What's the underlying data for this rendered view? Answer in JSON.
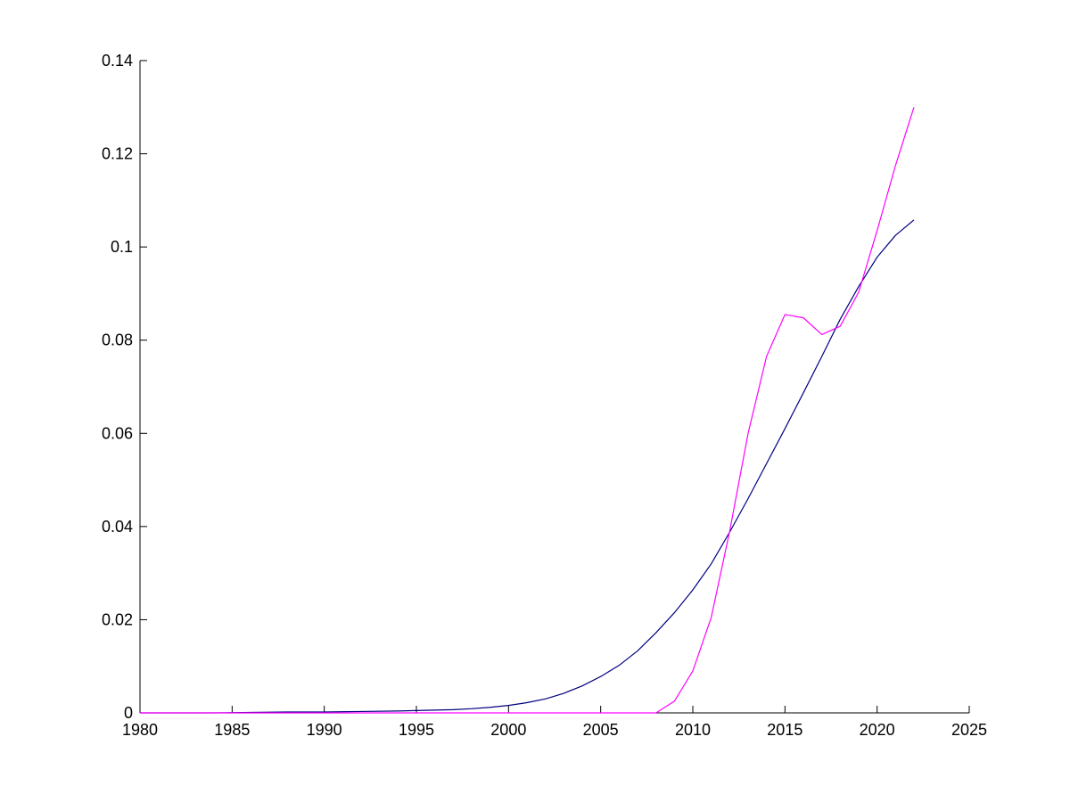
{
  "chart_data": {
    "type": "line",
    "title": "",
    "xlabel": "",
    "ylabel": "",
    "xlim": [
      1980,
      2025
    ],
    "ylim": [
      0,
      0.14
    ],
    "x_ticks": [
      1980,
      1985,
      1990,
      1995,
      2000,
      2005,
      2010,
      2015,
      2020,
      2025
    ],
    "x_tick_labels": [
      "1980",
      "1985",
      "1990",
      "1995",
      "2000",
      "2005",
      "2010",
      "2015",
      "2020",
      "2025"
    ],
    "y_ticks": [
      0,
      0.02,
      0.04,
      0.06,
      0.08,
      0.1,
      0.12,
      0.14
    ],
    "y_tick_labels": [
      "0",
      "0.02",
      "0.04",
      "0.06",
      "0.08",
      "0.1",
      "0.12",
      "0.14"
    ],
    "grid": false,
    "legend": "none",
    "series": [
      {
        "color": "#00007f",
        "x": [
          1980,
          1982,
          1984,
          1986,
          1988,
          1990,
          1992,
          1994,
          1995,
          1996,
          1997,
          1998,
          1999,
          2000,
          2001,
          2002,
          2003,
          2004,
          2005,
          2006,
          2007,
          2008,
          2009,
          2010,
          2011,
          2012,
          2013,
          2014,
          2015,
          2016,
          2017,
          2018,
          2019,
          2020,
          2021,
          2022
        ],
        "values": [
          0,
          0,
          0,
          0.0001,
          0.0002,
          0.0002,
          0.0003,
          0.0004,
          0.0005,
          0.0006,
          0.0007,
          0.0009,
          0.0012,
          0.0016,
          0.0022,
          0.003,
          0.0042,
          0.0058,
          0.0078,
          0.0102,
          0.0133,
          0.0172,
          0.0215,
          0.0264,
          0.032,
          0.0388,
          0.046,
          0.0535,
          0.061,
          0.0687,
          0.0765,
          0.0845,
          0.0915,
          0.0978,
          0.1025,
          0.1058
        ]
      },
      {
        "color": "#ff00ff",
        "x": [
          1980,
          2008,
          2009,
          2010,
          2011,
          2012,
          2013,
          2014,
          2015,
          2016,
          2017,
          2018,
          2019,
          2020,
          2021,
          2022
        ],
        "values": [
          0,
          0,
          0.0025,
          0.009,
          0.0205,
          0.039,
          0.06,
          0.0765,
          0.0855,
          0.0848,
          0.0812,
          0.083,
          0.0903,
          0.1035,
          0.1175,
          0.13
        ]
      }
    ]
  }
}
